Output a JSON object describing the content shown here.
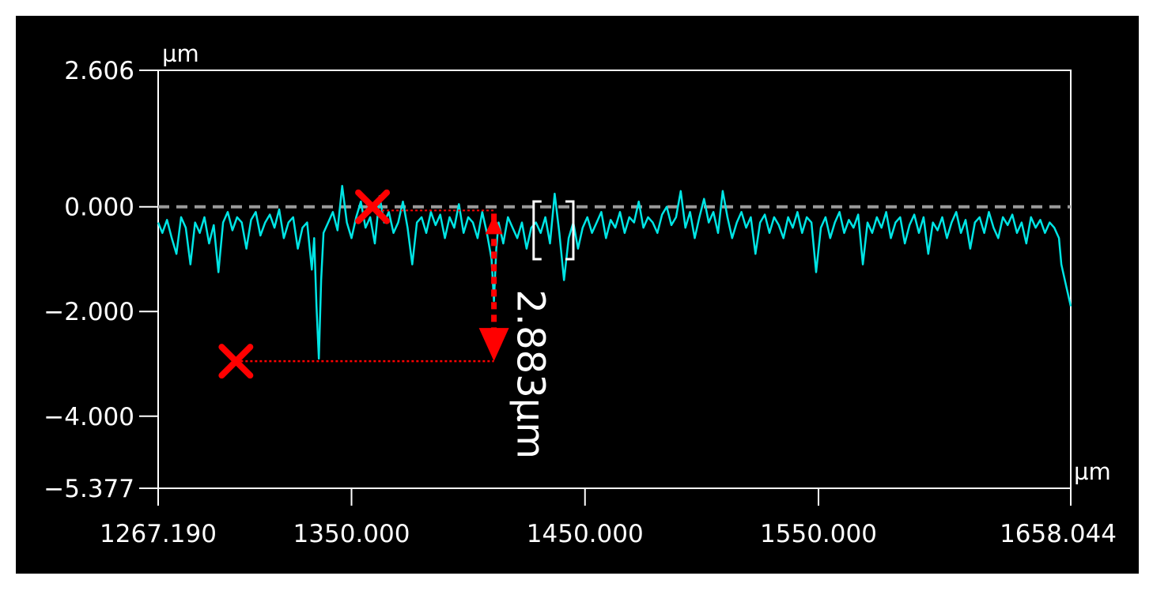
{
  "chart_data": {
    "type": "line",
    "title": "",
    "xlabel": "",
    "ylabel": "",
    "x_unit": "µm",
    "y_unit": "µm",
    "xlim": [
      1267.19,
      1658.044
    ],
    "ylim": [
      -5.377,
      2.606
    ],
    "x_ticks": [
      {
        "value": 1267.19,
        "label": "1267.190"
      },
      {
        "value": 1350,
        "label": "1350.000"
      },
      {
        "value": 1450,
        "label": "1450.000"
      },
      {
        "value": 1550,
        "label": "1550.000"
      },
      {
        "value": 1658.044,
        "label": "1658.044"
      }
    ],
    "y_ticks": [
      {
        "value": 2.606,
        "label": "2.606"
      },
      {
        "value": 0,
        "label": "0.000"
      },
      {
        "value": -2,
        "label": "−2.000"
      },
      {
        "value": -4,
        "label": "−4.000"
      },
      {
        "value": -5.377,
        "label": "−5.377"
      }
    ],
    "reference_line": {
      "y": 0
    },
    "series": [
      {
        "color": "#00e5e5",
        "points": [
          [
            1267.19,
            -0.3
          ],
          [
            1269,
            -0.5
          ],
          [
            1271,
            -0.25
          ],
          [
            1273,
            -0.6
          ],
          [
            1275,
            -0.9
          ],
          [
            1277,
            -0.2
          ],
          [
            1279,
            -0.4
          ],
          [
            1281,
            -1.1
          ],
          [
            1283,
            -0.3
          ],
          [
            1285,
            -0.5
          ],
          [
            1287,
            -0.2
          ],
          [
            1289,
            -0.7
          ],
          [
            1291,
            -0.35
          ],
          [
            1293,
            -1.25
          ],
          [
            1295,
            -0.3
          ],
          [
            1297,
            -0.1
          ],
          [
            1299,
            -0.45
          ],
          [
            1301,
            -0.2
          ],
          [
            1303,
            -0.3
          ],
          [
            1305,
            -0.8
          ],
          [
            1307,
            -0.25
          ],
          [
            1309,
            -0.1
          ],
          [
            1311,
            -0.55
          ],
          [
            1313,
            -0.3
          ],
          [
            1315,
            -0.15
          ],
          [
            1317,
            -0.4
          ],
          [
            1319,
            -0.05
          ],
          [
            1321,
            -0.6
          ],
          [
            1323,
            -0.3
          ],
          [
            1325,
            -0.2
          ],
          [
            1327,
            -0.8
          ],
          [
            1329,
            -0.4
          ],
          [
            1331,
            -0.3
          ],
          [
            1333,
            -1.2
          ],
          [
            1334,
            -0.6
          ],
          [
            1335,
            -1.9
          ],
          [
            1336,
            -2.9
          ],
          [
            1337,
            -1.4
          ],
          [
            1338,
            -0.5
          ],
          [
            1340,
            -0.3
          ],
          [
            1342,
            -0.1
          ],
          [
            1344,
            -0.45
          ],
          [
            1346,
            0.4
          ],
          [
            1348,
            -0.3
          ],
          [
            1350,
            -0.6
          ],
          [
            1352,
            -0.2
          ],
          [
            1354,
            0.1
          ],
          [
            1356,
            -0.4
          ],
          [
            1358,
            -0.2
          ],
          [
            1360,
            -0.7
          ],
          [
            1362,
            0.2
          ],
          [
            1364,
            -0.3
          ],
          [
            1366,
            -0.1
          ],
          [
            1368,
            -0.5
          ],
          [
            1370,
            -0.3
          ],
          [
            1372,
            0.1
          ],
          [
            1374,
            -0.4
          ],
          [
            1376,
            -1.1
          ],
          [
            1378,
            -0.3
          ],
          [
            1380,
            -0.2
          ],
          [
            1382,
            -0.5
          ],
          [
            1384,
            -0.1
          ],
          [
            1386,
            -0.35
          ],
          [
            1388,
            -0.15
          ],
          [
            1390,
            -0.6
          ],
          [
            1392,
            -0.2
          ],
          [
            1394,
            -0.4
          ],
          [
            1396,
            0.05
          ],
          [
            1398,
            -0.5
          ],
          [
            1400,
            -0.2
          ],
          [
            1402,
            -0.3
          ],
          [
            1404,
            -0.6
          ],
          [
            1406,
            -0.1
          ],
          [
            1408,
            -0.5
          ],
          [
            1410,
            -1.0
          ],
          [
            1411,
            -1.8
          ],
          [
            1412,
            -0.8
          ],
          [
            1413,
            -0.3
          ],
          [
            1415,
            -0.7
          ],
          [
            1417,
            -0.2
          ],
          [
            1419,
            -0.4
          ],
          [
            1421,
            -0.6
          ],
          [
            1423,
            -0.3
          ],
          [
            1425,
            -0.8
          ],
          [
            1427,
            -0.4
          ],
          [
            1429,
            -0.3
          ],
          [
            1431,
            -0.5
          ],
          [
            1433,
            -0.2
          ],
          [
            1435,
            -0.7
          ],
          [
            1437,
            0.25
          ],
          [
            1439,
            -0.5
          ],
          [
            1441,
            -1.4
          ],
          [
            1443,
            -0.6
          ],
          [
            1445,
            -0.3
          ],
          [
            1447,
            -0.8
          ],
          [
            1449,
            -0.4
          ],
          [
            1451,
            -0.2
          ],
          [
            1453,
            -0.5
          ],
          [
            1455,
            -0.3
          ],
          [
            1457,
            -0.1
          ],
          [
            1459,
            -0.6
          ],
          [
            1461,
            -0.25
          ],
          [
            1463,
            -0.4
          ],
          [
            1465,
            -0.1
          ],
          [
            1467,
            -0.5
          ],
          [
            1469,
            -0.2
          ],
          [
            1471,
            -0.3
          ],
          [
            1473,
            0.1
          ],
          [
            1475,
            -0.4
          ],
          [
            1477,
            -0.2
          ],
          [
            1479,
            -0.3
          ],
          [
            1481,
            -0.5
          ],
          [
            1483,
            -0.15
          ],
          [
            1485,
            0.0
          ],
          [
            1487,
            -0.35
          ],
          [
            1489,
            -0.2
          ],
          [
            1491,
            0.3
          ],
          [
            1493,
            -0.4
          ],
          [
            1495,
            -0.1
          ],
          [
            1497,
            -0.6
          ],
          [
            1499,
            -0.2
          ],
          [
            1501,
            0.15
          ],
          [
            1503,
            -0.3
          ],
          [
            1505,
            -0.1
          ],
          [
            1507,
            -0.5
          ],
          [
            1509,
            0.3
          ],
          [
            1511,
            -0.2
          ],
          [
            1513,
            -0.6
          ],
          [
            1515,
            -0.3
          ],
          [
            1517,
            -0.1
          ],
          [
            1519,
            -0.4
          ],
          [
            1521,
            -0.2
          ],
          [
            1523,
            -0.9
          ],
          [
            1525,
            -0.3
          ],
          [
            1527,
            -0.15
          ],
          [
            1529,
            -0.5
          ],
          [
            1531,
            -0.2
          ],
          [
            1533,
            -0.35
          ],
          [
            1535,
            -0.6
          ],
          [
            1537,
            -0.2
          ],
          [
            1539,
            -0.4
          ],
          [
            1541,
            -0.1
          ],
          [
            1543,
            -0.5
          ],
          [
            1545,
            -0.2
          ],
          [
            1547,
            -0.3
          ],
          [
            1549,
            -1.25
          ],
          [
            1551,
            -0.4
          ],
          [
            1553,
            -0.2
          ],
          [
            1555,
            -0.6
          ],
          [
            1557,
            -0.3
          ],
          [
            1559,
            -0.1
          ],
          [
            1561,
            -0.5
          ],
          [
            1563,
            -0.25
          ],
          [
            1565,
            -0.4
          ],
          [
            1567,
            -0.15
          ],
          [
            1569,
            -1.1
          ],
          [
            1571,
            -0.3
          ],
          [
            1573,
            -0.5
          ],
          [
            1575,
            -0.2
          ],
          [
            1577,
            -0.4
          ],
          [
            1579,
            -0.1
          ],
          [
            1581,
            -0.6
          ],
          [
            1583,
            -0.3
          ],
          [
            1585,
            -0.2
          ],
          [
            1587,
            -0.7
          ],
          [
            1589,
            -0.35
          ],
          [
            1591,
            -0.15
          ],
          [
            1593,
            -0.5
          ],
          [
            1595,
            -0.2
          ],
          [
            1597,
            -0.9
          ],
          [
            1599,
            -0.3
          ],
          [
            1601,
            -0.45
          ],
          [
            1603,
            -0.2
          ],
          [
            1605,
            -0.6
          ],
          [
            1607,
            -0.3
          ],
          [
            1609,
            -0.1
          ],
          [
            1611,
            -0.5
          ],
          [
            1613,
            -0.25
          ],
          [
            1615,
            -0.8
          ],
          [
            1617,
            -0.3
          ],
          [
            1619,
            -0.2
          ],
          [
            1621,
            -0.5
          ],
          [
            1623,
            -0.1
          ],
          [
            1625,
            -0.4
          ],
          [
            1627,
            -0.6
          ],
          [
            1629,
            -0.2
          ],
          [
            1631,
            -0.35
          ],
          [
            1633,
            -0.15
          ],
          [
            1635,
            -0.5
          ],
          [
            1637,
            -0.3
          ],
          [
            1639,
            -0.7
          ],
          [
            1641,
            -0.2
          ],
          [
            1643,
            -0.4
          ],
          [
            1645,
            -0.25
          ],
          [
            1647,
            -0.5
          ],
          [
            1649,
            -0.3
          ],
          [
            1651,
            -0.4
          ],
          [
            1653,
            -0.6
          ],
          [
            1654,
            -1.1
          ],
          [
            1656,
            -1.5
          ],
          [
            1658.044,
            -1.9
          ]
        ]
      }
    ],
    "markers": [
      {
        "type": "cross",
        "color": "#ff0000",
        "x": 1300.5,
        "y": -2.95
      },
      {
        "type": "cross",
        "color": "#ff0000",
        "x": 1359,
        "y": 0
      }
    ],
    "measurement": {
      "label": "2.883µm",
      "value": 2.883,
      "unit": "µm",
      "x": 1411,
      "from_y": -0.07,
      "to_y": -2.95,
      "color": "#ff0000"
    },
    "selection_box": {
      "x_range": [
        1428,
        1445
      ],
      "y_range": [
        0.1,
        -1.0
      ],
      "color": "#ffffff"
    },
    "grid": false,
    "legend": "none"
  }
}
